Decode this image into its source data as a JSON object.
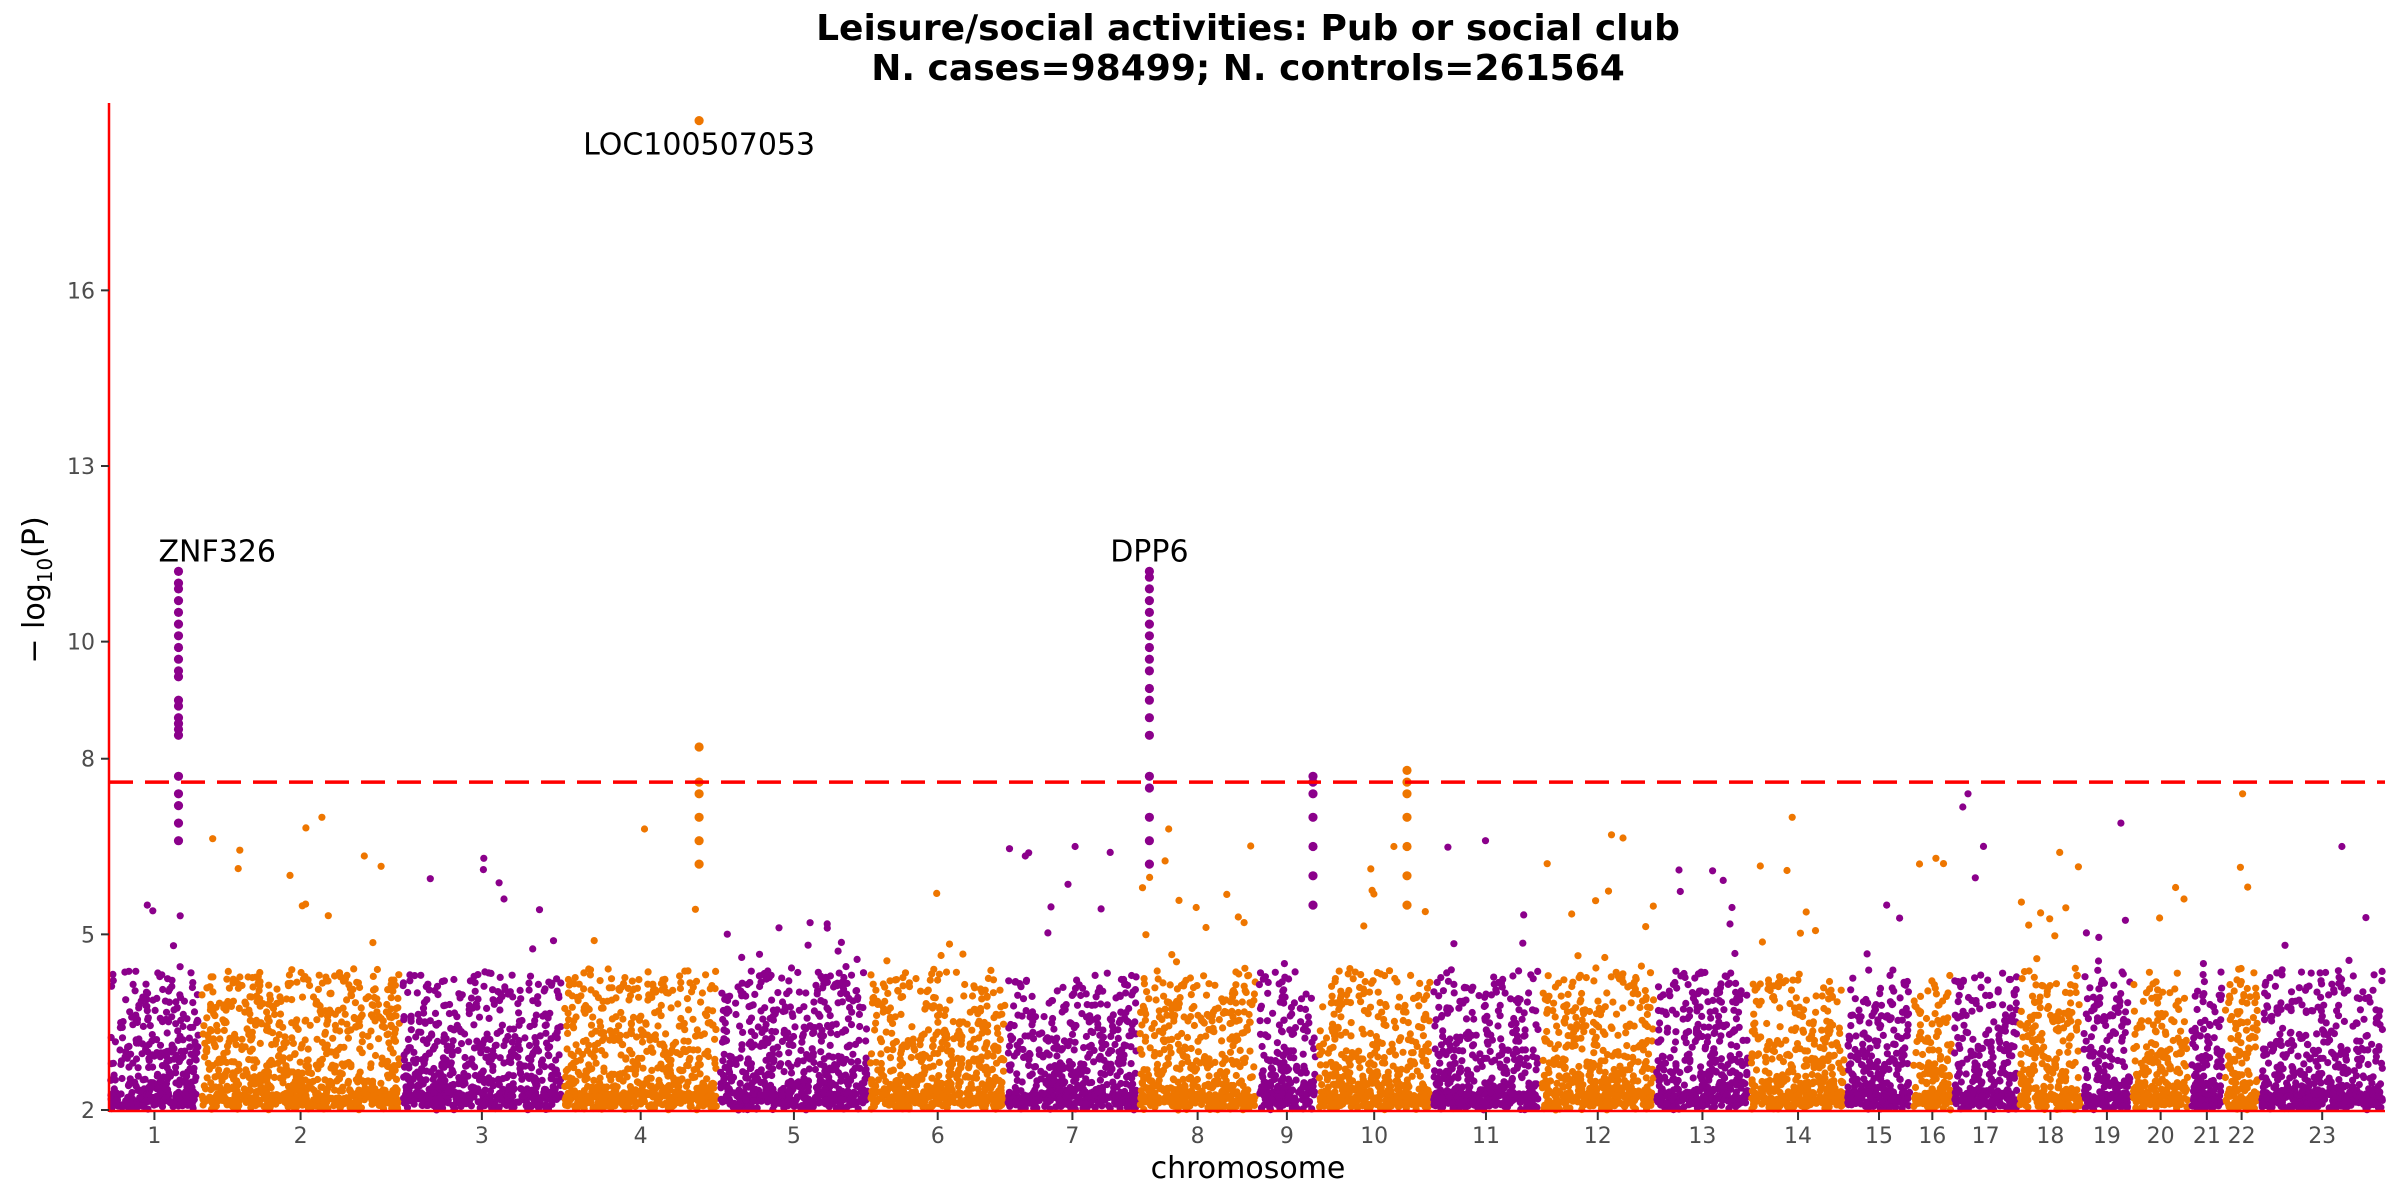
{
  "chart_data": {
    "type": "scatter",
    "title": "Leisure/social activities: Pub or social club",
    "subtitle": "N. cases=98499; N. controls=261564",
    "xlabel": "chromosome",
    "ylabel_main": "− log",
    "ylabel_sub": "10",
    "ylabel_tail": "(P)",
    "ylim": [
      2,
      19.2
    ],
    "y_ticks": [
      2,
      5,
      8,
      10,
      13,
      16
    ],
    "significance_threshold": 7.6,
    "colors": {
      "odd": "#8B008B",
      "even": "#EE7600",
      "axis": "#ff0000",
      "threshold": "#ff0000"
    },
    "chromosomes": [
      {
        "label": "1",
        "start": 0.0,
        "end": 115.0,
        "peak": 5.5
      },
      {
        "label": "2",
        "start": 115.0,
        "end": 370.0,
        "peak": 7.0
      },
      {
        "label": "3",
        "start": 370.0,
        "end": 574.0,
        "peak": 6.3
      },
      {
        "label": "4",
        "start": 574.0,
        "end": 772.0,
        "peak": 6.8
      },
      {
        "label": "5",
        "start": 772.0,
        "end": 962.0,
        "peak": 5.2
      },
      {
        "label": "6",
        "start": 962.0,
        "end": 1136.0,
        "peak": 5.7
      },
      {
        "label": "7",
        "start": 1136.0,
        "end": 1303.0,
        "peak": 6.5
      },
      {
        "label": "8",
        "start": 1303.0,
        "end": 1453.0,
        "peak": 6.8
      },
      {
        "label": "9",
        "start": 1453.0,
        "end": 1529.0,
        "peak": 4.5
      },
      {
        "label": "10",
        "start": 1529.0,
        "end": 1674.0,
        "peak": 6.5
      },
      {
        "label": "11",
        "start": 1674.0,
        "end": 1812.0,
        "peak": 6.6
      },
      {
        "label": "12",
        "start": 1812.0,
        "end": 1957.0,
        "peak": 6.7
      },
      {
        "label": "13",
        "start": 1957.0,
        "end": 2077.0,
        "peak": 6.1
      },
      {
        "label": "14",
        "start": 2077.0,
        "end": 2199.0,
        "peak": 7.0
      },
      {
        "label": "15",
        "start": 2199.0,
        "end": 2282.0,
        "peak": 5.5
      },
      {
        "label": "16",
        "start": 2282.0,
        "end": 2334.0,
        "peak": 6.3
      },
      {
        "label": "17",
        "start": 2334.0,
        "end": 2417.0,
        "peak": 7.4
      },
      {
        "label": "18",
        "start": 2417.0,
        "end": 2498.0,
        "peak": 6.4
      },
      {
        "label": "19",
        "start": 2498.0,
        "end": 2560.0,
        "peak": 6.9
      },
      {
        "label": "20",
        "start": 2560.0,
        "end": 2634.0,
        "peak": 5.8
      },
      {
        "label": "21",
        "start": 2634.0,
        "end": 2677.0,
        "peak": 4.5
      },
      {
        "label": "22",
        "start": 2677.0,
        "end": 2722.0,
        "peak": 7.4
      },
      {
        "label": "23",
        "start": 2722.0,
        "end": 2881.0,
        "peak": 6.5
      }
    ],
    "peaks": [
      {
        "chr": "1",
        "pos": 88.0,
        "values": [
          6.6,
          6.9,
          7.2,
          7.4,
          7.7,
          8.4,
          8.5,
          8.6,
          8.7,
          8.9,
          9.0,
          9.4,
          9.5,
          9.7,
          9.9,
          10.1,
          10.3,
          10.5,
          10.7,
          10.9,
          11.0,
          11.2
        ]
      },
      {
        "chr": "4",
        "pos": 747.0,
        "values": [
          6.2,
          6.6,
          7.0,
          7.4,
          7.6,
          8.2,
          18.9
        ]
      },
      {
        "chr": "7",
        "pos": 1317.0,
        "values": [
          6.2,
          6.6,
          7.0,
          7.5,
          7.7,
          8.4,
          8.7,
          9.0,
          9.2,
          9.5,
          9.7,
          9.9,
          10.1,
          10.3,
          10.5,
          10.7,
          10.9,
          11.1,
          11.2
        ]
      },
      {
        "chr": "9",
        "pos": 1524.0,
        "values": [
          5.5,
          6.0,
          6.5,
          7.0,
          7.4,
          7.6,
          7.7
        ]
      },
      {
        "chr": "10",
        "pos": 1643.0,
        "values": [
          5.5,
          6.0,
          6.5,
          7.0,
          7.4,
          7.6,
          7.8
        ]
      }
    ],
    "annotations": [
      {
        "text": "ZNF326",
        "chr": "1",
        "pos": 88.0,
        "y": 11.2
      },
      {
        "text": "LOC100507053",
        "chr": "4",
        "pos": 747.0,
        "y": 18.9
      },
      {
        "text": "DPP6",
        "chr": "7",
        "pos": 1317.0,
        "y": 11.2
      }
    ]
  }
}
